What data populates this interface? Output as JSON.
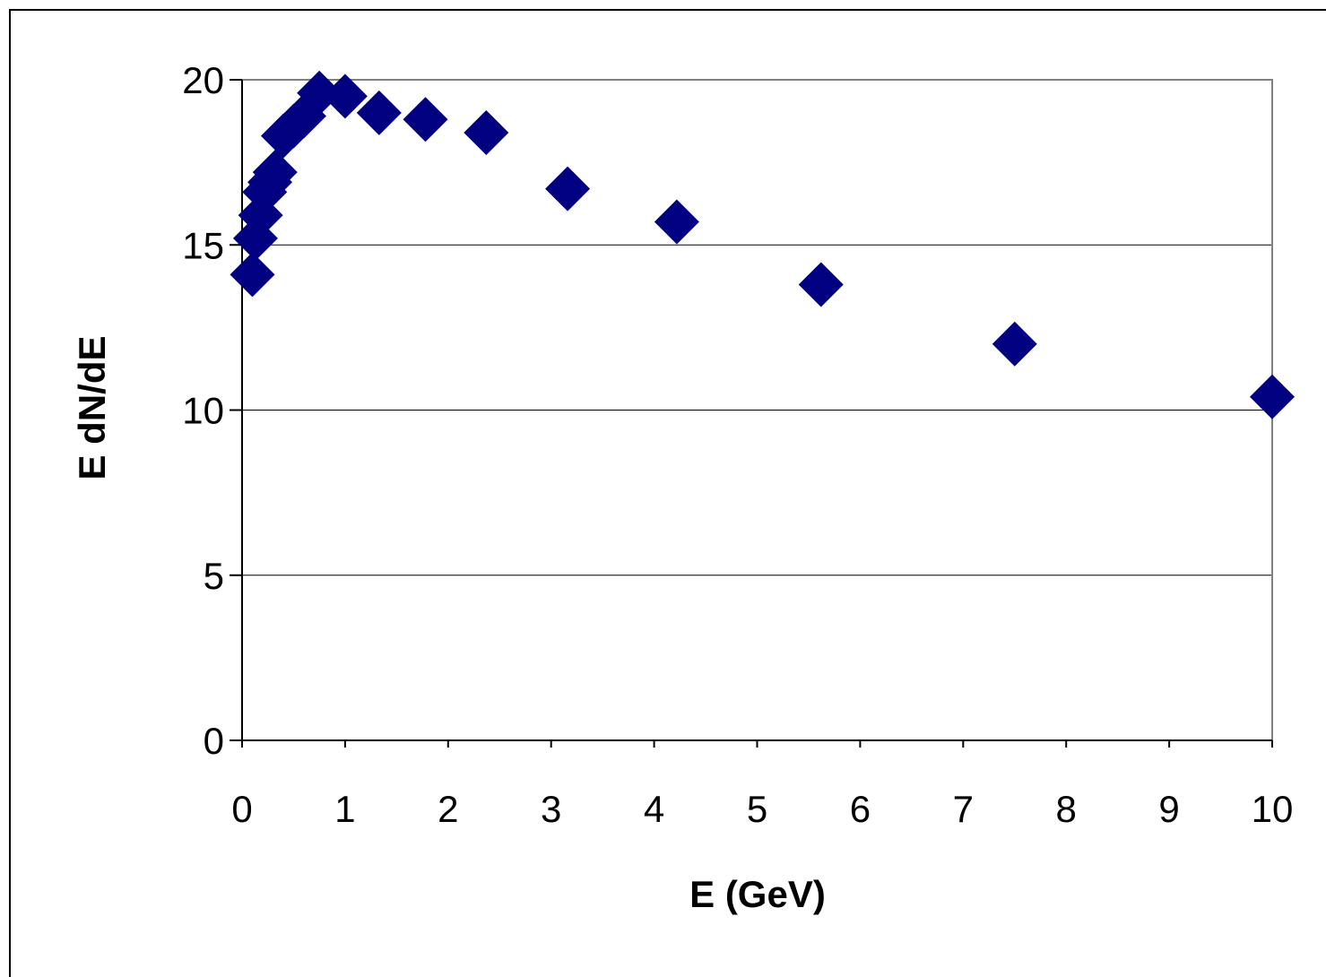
{
  "chart_data": {
    "type": "scatter",
    "title": "",
    "xlabel": "E (GeV)",
    "ylabel": "E dN/dE",
    "xlim": [
      0,
      10
    ],
    "ylim": [
      0,
      20
    ],
    "xticks": [
      "0",
      "1",
      "2",
      "3",
      "4",
      "5",
      "6",
      "7",
      "8",
      "9",
      "10"
    ],
    "yticks": [
      "0",
      "5",
      "10",
      "15",
      "20"
    ],
    "grid": "horizontal major gridlines",
    "legend": "none",
    "marker": "diamond",
    "marker_color": "#000080",
    "series": [
      {
        "x": [
          0.1,
          0.13,
          0.18,
          0.22,
          0.27,
          0.32,
          0.4,
          0.5,
          0.6,
          0.75,
          1.0,
          1.33,
          1.78,
          2.37,
          3.16,
          4.22,
          5.62,
          7.5,
          10.0
        ],
        "y": [
          14.1,
          15.2,
          15.9,
          16.6,
          16.9,
          17.2,
          18.3,
          18.6,
          18.9,
          19.6,
          19.5,
          19.0,
          18.8,
          18.4,
          16.7,
          15.7,
          13.8,
          12.0,
          10.4
        ]
      }
    ]
  }
}
